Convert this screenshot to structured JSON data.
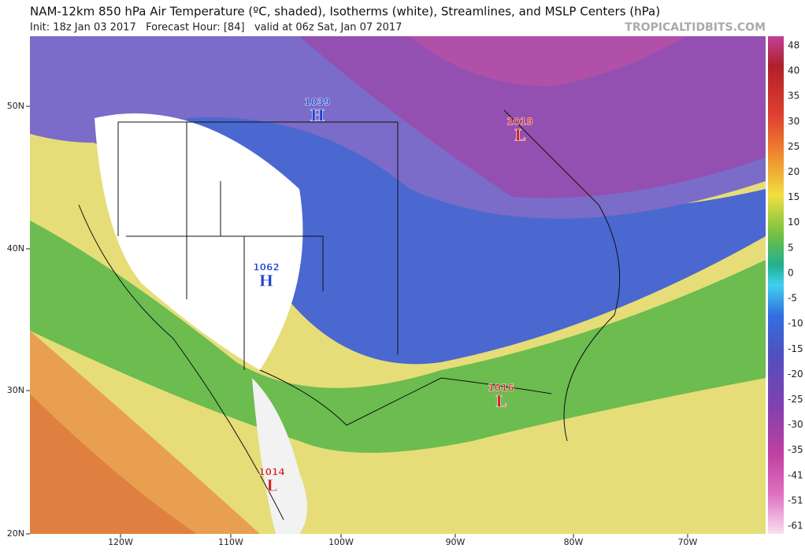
{
  "header": {
    "title": "NAM-12km 850 hPa Air Temperature (ºC, shaded), Isotherms (white), Streamlines, and MSLP Centers (hPa)",
    "subtitle": "Init: 18z Jan 03 2017   Forecast Hour: [84]   valid at 06z Sat, Jan 07 2017",
    "credit": "TROPICALTIDBITS.COM"
  },
  "colorbar": {
    "labels": [
      48,
      40,
      35,
      30,
      25,
      20,
      15,
      10,
      5,
      0,
      -5,
      -10,
      -15,
      -20,
      -25,
      -30,
      -35,
      -41,
      -51,
      -61
    ]
  },
  "axes": {
    "longitudes": [
      "120W",
      "110W",
      "100W",
      "90W",
      "80W",
      "70W"
    ],
    "latitudes": [
      "50N",
      "40N",
      "30N",
      "20N"
    ]
  },
  "centers": [
    {
      "pressure": "1039",
      "type": "H"
    },
    {
      "pressure": "1062",
      "type": "H"
    },
    {
      "pressure": "1019",
      "type": "L"
    },
    {
      "pressure": "1016",
      "type": "L"
    },
    {
      "pressure": "1014",
      "type": "L"
    }
  ]
}
